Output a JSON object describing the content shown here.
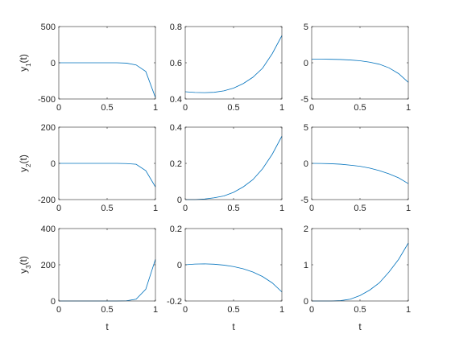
{
  "chart_data": [
    {
      "type": "line",
      "ylabel_parts": [
        "y",
        "1",
        "(t)"
      ],
      "x": [
        0,
        0.1,
        0.2,
        0.3,
        0.4,
        0.5,
        0.6,
        0.7,
        0.8,
        0.9,
        1
      ],
      "series": [
        {
          "color": "#0072bd",
          "values": [
            0,
            0,
            0,
            0,
            0,
            0,
            0,
            -5,
            -30,
            -120,
            -480
          ]
        }
      ],
      "xlim": [
        0,
        1
      ],
      "xticks": [
        0,
        0.5,
        1
      ],
      "ylim": [
        -500,
        500
      ],
      "yticks": [
        -500,
        0,
        500
      ]
    },
    {
      "type": "line",
      "x": [
        0,
        0.1,
        0.2,
        0.3,
        0.4,
        0.5,
        0.6,
        0.7,
        0.8,
        0.9,
        1
      ],
      "series": [
        {
          "color": "#0072bd",
          "values": [
            0.44,
            0.436,
            0.435,
            0.437,
            0.445,
            0.46,
            0.485,
            0.52,
            0.57,
            0.65,
            0.75
          ]
        }
      ],
      "xlim": [
        0,
        1
      ],
      "xticks": [
        0,
        0.5,
        1
      ],
      "ylim": [
        0.4,
        0.8
      ],
      "yticks": [
        0.4,
        0.6,
        0.8
      ]
    },
    {
      "type": "line",
      "x": [
        0,
        0.1,
        0.2,
        0.3,
        0.4,
        0.5,
        0.6,
        0.7,
        0.8,
        0.9,
        1
      ],
      "series": [
        {
          "color": "#0072bd",
          "values": [
            0.5,
            0.5,
            0.48,
            0.45,
            0.38,
            0.28,
            0.08,
            -0.2,
            -0.7,
            -1.5,
            -2.7
          ]
        }
      ],
      "xlim": [
        0,
        1
      ],
      "xticks": [
        0,
        0.5,
        1
      ],
      "ylim": [
        -5,
        5
      ],
      "yticks": [
        -5,
        0,
        5
      ]
    },
    {
      "type": "line",
      "ylabel_parts": [
        "y",
        "2",
        "(t)"
      ],
      "x": [
        0,
        0.1,
        0.2,
        0.3,
        0.4,
        0.5,
        0.6,
        0.7,
        0.8,
        0.9,
        1
      ],
      "series": [
        {
          "color": "#0072bd",
          "values": [
            0,
            0,
            0,
            0,
            0,
            0,
            0,
            -1,
            -5,
            -40,
            -130
          ]
        }
      ],
      "xlim": [
        0,
        1
      ],
      "xticks": [
        0,
        0.5,
        1
      ],
      "ylim": [
        -200,
        200
      ],
      "yticks": [
        -200,
        0,
        200
      ]
    },
    {
      "type": "line",
      "x": [
        0,
        0.1,
        0.2,
        0.3,
        0.4,
        0.5,
        0.6,
        0.7,
        0.8,
        0.9,
        1
      ],
      "series": [
        {
          "color": "#0072bd",
          "values": [
            0,
            0,
            0.003,
            0.01,
            0.02,
            0.04,
            0.07,
            0.11,
            0.17,
            0.25,
            0.35
          ]
        }
      ],
      "xlim": [
        0,
        1
      ],
      "xticks": [
        0,
        0.5,
        1
      ],
      "ylim": [
        0,
        0.4
      ],
      "yticks": [
        0,
        0.2,
        0.4
      ]
    },
    {
      "type": "line",
      "x": [
        0,
        0.1,
        0.2,
        0.3,
        0.4,
        0.5,
        0.6,
        0.7,
        0.8,
        0.9,
        1
      ],
      "series": [
        {
          "color": "#0072bd",
          "values": [
            0,
            -0.01,
            -0.05,
            -0.12,
            -0.25,
            -0.4,
            -0.65,
            -1.0,
            -1.45,
            -2.0,
            -2.8
          ]
        }
      ],
      "xlim": [
        0,
        1
      ],
      "xticks": [
        0,
        0.5,
        1
      ],
      "ylim": [
        -5,
        5
      ],
      "yticks": [
        -5,
        0,
        5
      ]
    },
    {
      "type": "line",
      "ylabel_parts": [
        "y",
        "3",
        "(t)"
      ],
      "xlabel": "t",
      "x": [
        0,
        0.1,
        0.2,
        0.3,
        0.4,
        0.5,
        0.6,
        0.7,
        0.8,
        0.9,
        1
      ],
      "series": [
        {
          "color": "#0072bd",
          "values": [
            0,
            0,
            0,
            0,
            0,
            0,
            0,
            1,
            10,
            65,
            230
          ]
        }
      ],
      "xlim": [
        0,
        1
      ],
      "xticks": [
        0,
        0.5,
        1
      ],
      "ylim": [
        0,
        400
      ],
      "yticks": [
        0,
        200,
        400
      ]
    },
    {
      "type": "line",
      "xlabel": "t",
      "x": [
        0,
        0.1,
        0.2,
        0.3,
        0.4,
        0.5,
        0.6,
        0.7,
        0.8,
        0.9,
        1
      ],
      "series": [
        {
          "color": "#0072bd",
          "values": [
            0,
            0.004,
            0.005,
            0.003,
            -0.002,
            -0.01,
            -0.022,
            -0.04,
            -0.065,
            -0.1,
            -0.15
          ]
        }
      ],
      "xlim": [
        0,
        1
      ],
      "xticks": [
        0,
        0.5,
        1
      ],
      "ylim": [
        -0.2,
        0.2
      ],
      "yticks": [
        -0.2,
        0,
        0.2
      ]
    },
    {
      "type": "line",
      "xlabel": "t",
      "x": [
        0,
        0.1,
        0.2,
        0.3,
        0.4,
        0.5,
        0.6,
        0.7,
        0.8,
        0.9,
        1
      ],
      "series": [
        {
          "color": "#0072bd",
          "values": [
            0,
            0,
            0,
            0.01,
            0.05,
            0.15,
            0.3,
            0.5,
            0.8,
            1.15,
            1.6
          ]
        }
      ],
      "xlim": [
        0,
        1
      ],
      "xticks": [
        0,
        0.5,
        1
      ],
      "ylim": [
        0,
        2
      ],
      "yticks": [
        0,
        1,
        2
      ]
    }
  ]
}
